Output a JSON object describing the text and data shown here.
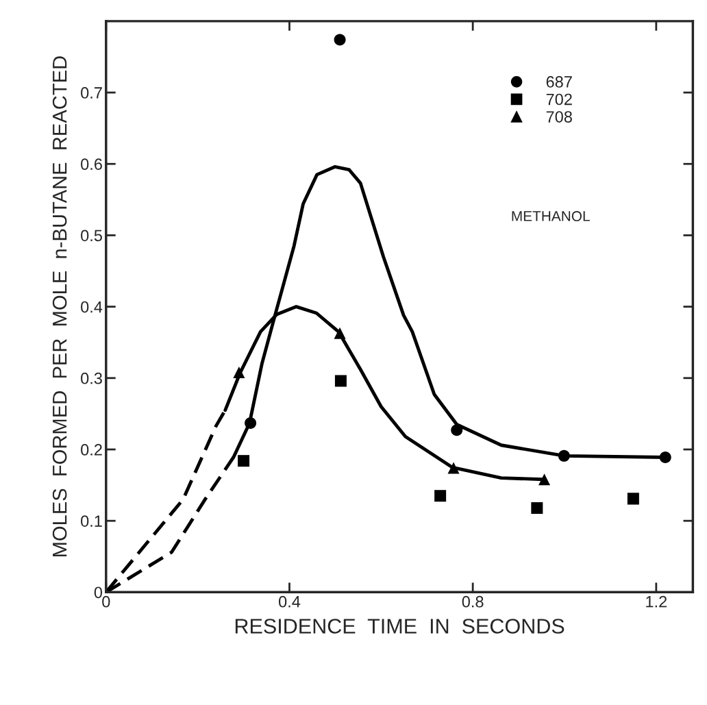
{
  "chart_data": {
    "type": "scatter",
    "xlabel": "RESIDENCE  TIME  IN  SECONDS",
    "ylabel": "MOLES  FORMED  PER  MOLE  n-BUTANE  REACTED",
    "xlim": [
      0,
      1.28
    ],
    "ylim": [
      0,
      0.8
    ],
    "xticks": [
      0,
      0.4,
      0.8,
      1.2
    ],
    "yticks": [
      0,
      0.1,
      0.2,
      0.3,
      0.4,
      0.5,
      0.6,
      0.7
    ],
    "grid": false,
    "legend": "top right",
    "annotations": [
      "METHANOL"
    ],
    "series": [
      {
        "name": "687",
        "marker": "circle",
        "color": "#000000",
        "x": [
          0.315,
          0.51,
          0.765,
          0.999,
          1.22
        ],
        "values": [
          0.237,
          0.774,
          0.227,
          0.191,
          0.189
        ]
      },
      {
        "name": "702",
        "marker": "square",
        "color": "#000000",
        "x": [
          0.3,
          0.512,
          0.729,
          0.94,
          1.15
        ],
        "values": [
          0.184,
          0.296,
          0.135,
          0.118,
          0.131
        ]
      },
      {
        "name": "708",
        "marker": "triangle",
        "color": "#000000",
        "x": [
          0.29,
          0.51,
          0.758,
          0.956
        ],
        "values": [
          0.308,
          0.363,
          0.174,
          0.158
        ]
      },
      {
        "type": "line",
        "line_style": "dashed",
        "color": "#000000",
        "x": [
          0,
          0.143,
          0.216,
          0.278
        ],
        "values": [
          0,
          0.056,
          0.13,
          0.189
        ]
      },
      {
        "type": "line",
        "line_style": "solid",
        "color": "#000000",
        "x": [
          0.278,
          0.313,
          0.34,
          0.369,
          0.41,
          0.43,
          0.46,
          0.499,
          0.53,
          0.555,
          0.605,
          0.649,
          0.668,
          0.716,
          0.765,
          0.862,
          1.0,
          1.22
        ],
        "values": [
          0.189,
          0.237,
          0.32,
          0.389,
          0.485,
          0.544,
          0.585,
          0.596,
          0.592,
          0.573,
          0.47,
          0.388,
          0.365,
          0.277,
          0.235,
          0.206,
          0.191,
          0.189
        ]
      },
      {
        "type": "line",
        "line_style": "dashed",
        "color": "#000000",
        "x": [
          0,
          0.168,
          0.24,
          0.26
        ],
        "values": [
          0,
          0.13,
          0.233,
          0.255
        ]
      },
      {
        "type": "line",
        "line_style": "solid",
        "color": "#000000",
        "x": [
          0.26,
          0.293,
          0.337,
          0.372,
          0.415,
          0.459,
          0.507,
          0.555,
          0.6,
          0.653,
          0.755,
          0.862,
          0.956
        ],
        "values": [
          0.255,
          0.308,
          0.365,
          0.389,
          0.4,
          0.391,
          0.365,
          0.312,
          0.26,
          0.218,
          0.175,
          0.16,
          0.158
        ]
      }
    ]
  }
}
